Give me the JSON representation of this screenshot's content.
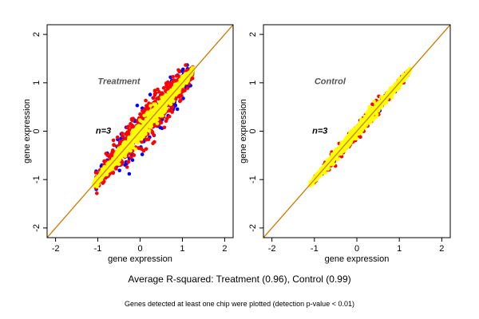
{
  "chart_data": [
    {
      "type": "scatter",
      "title": "",
      "annotation": "Treatment",
      "n_label": "n=3",
      "xlabel": "gene expression",
      "ylabel": "gene expression",
      "xlim": [
        -2.2,
        2.2
      ],
      "ylim": [
        -2.2,
        2.2
      ],
      "xticks": [
        "-2",
        "-1",
        "0",
        "1",
        "2"
      ],
      "yticks": [
        "-2",
        "-1",
        "0",
        "1",
        "2"
      ],
      "reference_line": "y = x",
      "grid": false,
      "series": [
        {
          "color": "#0000ff",
          "x_range": [
            -1.05,
            1.25
          ],
          "spread": 0.28,
          "count": 180
        },
        {
          "color": "#ff0000",
          "x_range": [
            -1.05,
            1.25
          ],
          "spread": 0.2,
          "count": 900
        },
        {
          "color": "#ffff00",
          "x_range": [
            -1.1,
            1.25
          ],
          "spread": 0.09,
          "count": 1100
        }
      ]
    },
    {
      "type": "scatter",
      "title": "",
      "annotation": "Control",
      "n_label": "n=3",
      "xlabel": "gene expression",
      "ylabel": "gene expression",
      "xlim": [
        -2.2,
        2.2
      ],
      "ylim": [
        -2.2,
        2.2
      ],
      "xticks": [
        "-2",
        "-1",
        "0",
        "1",
        "2"
      ],
      "yticks": [
        "-2",
        "-1",
        "0",
        "1",
        "2"
      ],
      "reference_line": "y = x",
      "grid": false,
      "series": [
        {
          "color": "#0000ff",
          "x_range": [
            -1.05,
            1.25
          ],
          "spread": 0.04,
          "count": 40
        },
        {
          "color": "#ff0000",
          "x_range": [
            -1.05,
            1.25
          ],
          "spread": 0.08,
          "count": 350
        },
        {
          "color": "#ffff00",
          "x_range": [
            -1.1,
            1.25
          ],
          "spread": 0.06,
          "count": 1100
        }
      ]
    }
  ],
  "caption": {
    "main": "Average R-squared: Treatment (0.96), Control (0.99)",
    "note": "Genes detected at least one chip were plotted (detection p-value < 0.01)"
  },
  "colors": {
    "reference_line": "#cc7a00",
    "axis": "#000000"
  }
}
